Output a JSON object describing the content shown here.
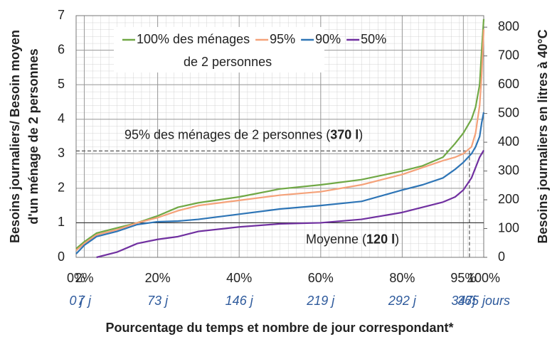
{
  "chart_data": {
    "type": "line",
    "ylabel": [
      "Besoins journaliers/ Besoin moyen",
      "d'un ménage de 2 personnes"
    ],
    "y2label": "Besoins journaliers en litres à 40°C",
    "xlabel": "Pourcentage du temps et nombre de jour correspondant*",
    "x": [
      0,
      2,
      5,
      10,
      15,
      20,
      25,
      30,
      40,
      50,
      60,
      70,
      80,
      85,
      90,
      93,
      95,
      97,
      98,
      99,
      99.5,
      100
    ],
    "series": [
      {
        "name": "100% des ménages",
        "color": "#70a845",
        "values": [
          0.25,
          0.45,
          0.7,
          0.85,
          1.0,
          1.2,
          1.45,
          1.58,
          1.75,
          1.98,
          2.1,
          2.25,
          2.5,
          2.65,
          2.9,
          3.3,
          3.6,
          4.0,
          4.35,
          5.0,
          6.0,
          6.9
        ]
      },
      {
        "name": "95%",
        "color": "#f5a27a",
        "values": [
          0.2,
          0.4,
          0.65,
          0.8,
          1.0,
          1.15,
          1.35,
          1.5,
          1.65,
          1.8,
          1.9,
          2.1,
          2.4,
          2.6,
          2.8,
          2.9,
          3.0,
          3.2,
          3.6,
          4.4,
          5.3,
          6.6
        ]
      },
      {
        "name": "90%",
        "color": "#2e75b6",
        "values": [
          0.1,
          0.35,
          0.6,
          0.75,
          0.95,
          1.03,
          1.05,
          1.1,
          1.25,
          1.4,
          1.5,
          1.62,
          1.95,
          2.1,
          2.3,
          2.55,
          2.75,
          3.0,
          3.2,
          3.5,
          3.9,
          4.2
        ]
      },
      {
        "name": "50%",
        "color": "#7030a0",
        "values": [
          null,
          null,
          0,
          0.15,
          0.4,
          0.52,
          0.6,
          0.75,
          0.88,
          0.97,
          1.0,
          1.1,
          1.3,
          1.45,
          1.6,
          1.75,
          1.95,
          2.3,
          2.6,
          2.9,
          3.0,
          3.1
        ]
      }
    ],
    "legend_subtitle": "de 2 personnes",
    "xlim": [
      0,
      100
    ],
    "xticks": [
      {
        "value": 0,
        "label": "0%"
      },
      {
        "value": 2,
        "label": "2%"
      },
      {
        "value": 20,
        "label": "20%"
      },
      {
        "value": 40,
        "label": "40%"
      },
      {
        "value": 60,
        "label": "60%"
      },
      {
        "value": 80,
        "label": "80%"
      },
      {
        "value": 95,
        "label": "95%"
      },
      {
        "value": 100,
        "label": "100%"
      }
    ],
    "day_labels": [
      "0 j",
      "7 j",
      "73 j",
      "146 j",
      "219 j",
      "292 j",
      "347j",
      "365 jours"
    ],
    "ylim": [
      0,
      7
    ],
    "yticks": [
      0,
      1,
      2,
      3,
      4,
      5,
      6,
      7
    ],
    "y2lim": [
      0,
      840
    ],
    "y2ticks": [
      0,
      100,
      200,
      300,
      400,
      500,
      600,
      700,
      800
    ],
    "grid": true,
    "reference_lines": [
      {
        "y": 3.08,
        "x": 96.5,
        "label": [
          "95% des ménages de 2 personnes (",
          "370 l",
          ")"
        ]
      },
      {
        "y": 1,
        "label": [
          "Moyenne (",
          "120 l",
          ")"
        ]
      }
    ]
  }
}
